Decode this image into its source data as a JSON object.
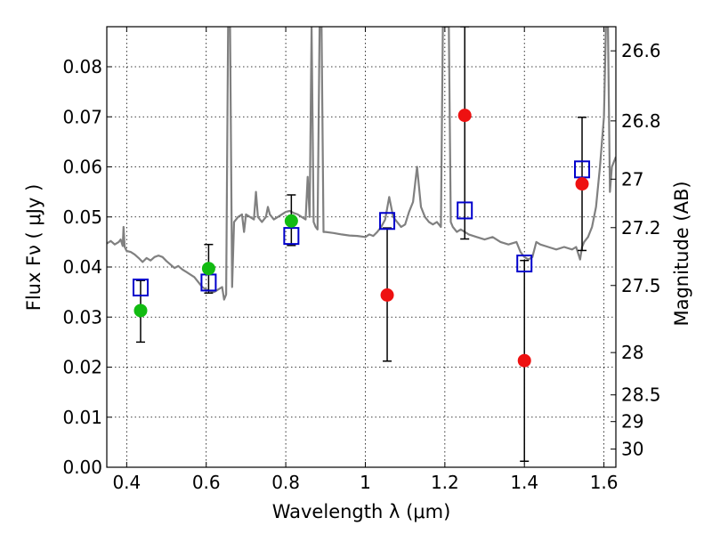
{
  "chart_data": {
    "type": "scatter",
    "xlabel": "Wavelength  λ (μm)",
    "ylabel": "Flux  Fν  ( μJy )",
    "ylabel_right": "Magnitude (AB)",
    "xlim": [
      0.35,
      1.63
    ],
    "ylim": [
      0.0,
      0.088
    ],
    "grid": true,
    "x_ticks": [
      0.4,
      0.6,
      0.8,
      1.0,
      1.2,
      1.4,
      1.6
    ],
    "x_tick_labels": [
      "0.4",
      "0.6",
      "0.8",
      "1",
      "1.2",
      "1.4",
      "1.6"
    ],
    "y_ticks": [
      0.0,
      0.01,
      0.02,
      0.03,
      0.04,
      0.05,
      0.06,
      0.07,
      0.08
    ],
    "y_tick_labels": [
      "0.00",
      "0.01",
      "0.02",
      "0.03",
      "0.04",
      "0.05",
      "0.06",
      "0.07",
      "0.08"
    ],
    "right_ticks": [
      {
        "mag": 26.6,
        "label": "26.6"
      },
      {
        "mag": 26.8,
        "label": "26.8"
      },
      {
        "mag": 27.0,
        "label": "27"
      },
      {
        "mag": 27.2,
        "label": "27.2"
      },
      {
        "mag": 27.5,
        "label": "27.5"
      },
      {
        "mag": 28.0,
        "label": "28"
      },
      {
        "mag": 28.5,
        "label": "28.5"
      },
      {
        "mag": 29.0,
        "label": "29"
      },
      {
        "mag": 30.0,
        "label": "30"
      }
    ],
    "colors": {
      "spectrum": "#808080",
      "model": "#0000cc",
      "green": "#11bb11",
      "red": "#ee1111",
      "errorbar": "#000000"
    },
    "series": [
      {
        "marker": "green-circle",
        "points": [
          {
            "x": 0.435,
            "y": 0.0313,
            "ylo": 0.025,
            "yhi": 0.0373
          },
          {
            "x": 0.606,
            "y": 0.0397,
            "ylo": 0.0348,
            "yhi": 0.0445
          },
          {
            "x": 0.814,
            "y": 0.0492,
            "ylo": 0.0443,
            "yhi": 0.0544
          }
        ]
      },
      {
        "marker": "red-circle",
        "points": [
          {
            "x": 1.055,
            "y": 0.0344,
            "ylo": 0.0212,
            "yhi": 0.0478
          },
          {
            "x": 1.25,
            "y": 0.0703,
            "ylo": 0.0456,
            "yhi": 0.088
          },
          {
            "x": 1.4,
            "y": 0.0213,
            "ylo": 0.0012,
            "yhi": 0.0413
          },
          {
            "x": 1.545,
            "y": 0.0566,
            "ylo": 0.0433,
            "yhi": 0.0699
          }
        ]
      },
      {
        "marker": "blue-open-square",
        "points": [
          {
            "x": 0.435,
            "y": 0.0359
          },
          {
            "x": 0.606,
            "y": 0.0369
          },
          {
            "x": 0.814,
            "y": 0.0462
          },
          {
            "x": 1.055,
            "y": 0.0492
          },
          {
            "x": 1.25,
            "y": 0.0513
          },
          {
            "x": 1.4,
            "y": 0.0407
          },
          {
            "x": 1.545,
            "y": 0.0595
          }
        ]
      },
      {
        "marker": "gray-line",
        "points": [
          [
            0.35,
            0.0447
          ],
          [
            0.36,
            0.0452
          ],
          [
            0.37,
            0.0445
          ],
          [
            0.38,
            0.045
          ],
          [
            0.385,
            0.0455
          ],
          [
            0.39,
            0.0442
          ],
          [
            0.392,
            0.048
          ],
          [
            0.395,
            0.044
          ],
          [
            0.4,
            0.0432
          ],
          [
            0.41,
            0.043
          ],
          [
            0.42,
            0.0425
          ],
          [
            0.43,
            0.0418
          ],
          [
            0.44,
            0.041
          ],
          [
            0.45,
            0.0418
          ],
          [
            0.46,
            0.0413
          ],
          [
            0.47,
            0.042
          ],
          [
            0.48,
            0.0423
          ],
          [
            0.49,
            0.042
          ],
          [
            0.5,
            0.0412
          ],
          [
            0.51,
            0.0405
          ],
          [
            0.52,
            0.0398
          ],
          [
            0.53,
            0.0402
          ],
          [
            0.54,
            0.0395
          ],
          [
            0.55,
            0.039
          ],
          [
            0.56,
            0.0385
          ],
          [
            0.57,
            0.038
          ],
          [
            0.58,
            0.037
          ],
          [
            0.59,
            0.036
          ],
          [
            0.6,
            0.0355
          ],
          [
            0.61,
            0.0352
          ],
          [
            0.62,
            0.035
          ],
          [
            0.63,
            0.0355
          ],
          [
            0.64,
            0.036
          ],
          [
            0.645,
            0.0335
          ],
          [
            0.65,
            0.0345
          ],
          [
            0.655,
            0.088
          ],
          [
            0.66,
            0.088
          ],
          [
            0.665,
            0.036
          ],
          [
            0.67,
            0.049
          ],
          [
            0.68,
            0.05
          ],
          [
            0.69,
            0.0505
          ],
          [
            0.695,
            0.047
          ],
          [
            0.7,
            0.0505
          ],
          [
            0.71,
            0.05
          ],
          [
            0.72,
            0.0495
          ],
          [
            0.725,
            0.055
          ],
          [
            0.73,
            0.05
          ],
          [
            0.74,
            0.049
          ],
          [
            0.75,
            0.05
          ],
          [
            0.755,
            0.052
          ],
          [
            0.76,
            0.0505
          ],
          [
            0.77,
            0.0495
          ],
          [
            0.78,
            0.05
          ],
          [
            0.79,
            0.0505
          ],
          [
            0.8,
            0.051
          ],
          [
            0.81,
            0.0512
          ],
          [
            0.82,
            0.0508
          ],
          [
            0.83,
            0.0505
          ],
          [
            0.84,
            0.05
          ],
          [
            0.85,
            0.0495
          ],
          [
            0.855,
            0.058
          ],
          [
            0.86,
            0.05
          ],
          [
            0.865,
            0.088
          ],
          [
            0.87,
            0.049
          ],
          [
            0.875,
            0.048
          ],
          [
            0.88,
            0.0475
          ],
          [
            0.885,
            0.088
          ],
          [
            0.89,
            0.088
          ],
          [
            0.895,
            0.047
          ],
          [
            0.9,
            0.047
          ],
          [
            0.92,
            0.0468
          ],
          [
            0.94,
            0.0465
          ],
          [
            0.96,
            0.0463
          ],
          [
            0.98,
            0.0462
          ],
          [
            1.0,
            0.046
          ],
          [
            1.01,
            0.0465
          ],
          [
            1.02,
            0.0462
          ],
          [
            1.03,
            0.047
          ],
          [
            1.04,
            0.048
          ],
          [
            1.05,
            0.0495
          ],
          [
            1.06,
            0.054
          ],
          [
            1.07,
            0.05
          ],
          [
            1.08,
            0.049
          ],
          [
            1.09,
            0.048
          ],
          [
            1.1,
            0.0485
          ],
          [
            1.11,
            0.051
          ],
          [
            1.12,
            0.053
          ],
          [
            1.13,
            0.06
          ],
          [
            1.14,
            0.052
          ],
          [
            1.15,
            0.05
          ],
          [
            1.16,
            0.049
          ],
          [
            1.17,
            0.0485
          ],
          [
            1.18,
            0.049
          ],
          [
            1.19,
            0.048
          ],
          [
            1.195,
            0.088
          ],
          [
            1.2,
            0.088
          ],
          [
            1.21,
            0.088
          ],
          [
            1.215,
            0.049
          ],
          [
            1.22,
            0.048
          ],
          [
            1.23,
            0.047
          ],
          [
            1.24,
            0.0475
          ],
          [
            1.25,
            0.047
          ],
          [
            1.26,
            0.0465
          ],
          [
            1.28,
            0.046
          ],
          [
            1.3,
            0.0455
          ],
          [
            1.32,
            0.046
          ],
          [
            1.34,
            0.045
          ],
          [
            1.36,
            0.0445
          ],
          [
            1.38,
            0.045
          ],
          [
            1.39,
            0.043
          ],
          [
            1.4,
            0.042
          ],
          [
            1.41,
            0.0415
          ],
          [
            1.42,
            0.042
          ],
          [
            1.43,
            0.045
          ],
          [
            1.44,
            0.0445
          ],
          [
            1.46,
            0.044
          ],
          [
            1.48,
            0.0435
          ],
          [
            1.5,
            0.044
          ],
          [
            1.52,
            0.0435
          ],
          [
            1.53,
            0.044
          ],
          [
            1.54,
            0.0415
          ],
          [
            1.545,
            0.044
          ],
          [
            1.55,
            0.045
          ],
          [
            1.56,
            0.046
          ],
          [
            1.57,
            0.048
          ],
          [
            1.58,
            0.052
          ],
          [
            1.59,
            0.06
          ],
          [
            1.6,
            0.07
          ],
          [
            1.605,
            0.088
          ],
          [
            1.61,
            0.088
          ],
          [
            1.615,
            0.055
          ],
          [
            1.62,
            0.06
          ],
          [
            1.63,
            0.062
          ]
        ]
      }
    ]
  }
}
